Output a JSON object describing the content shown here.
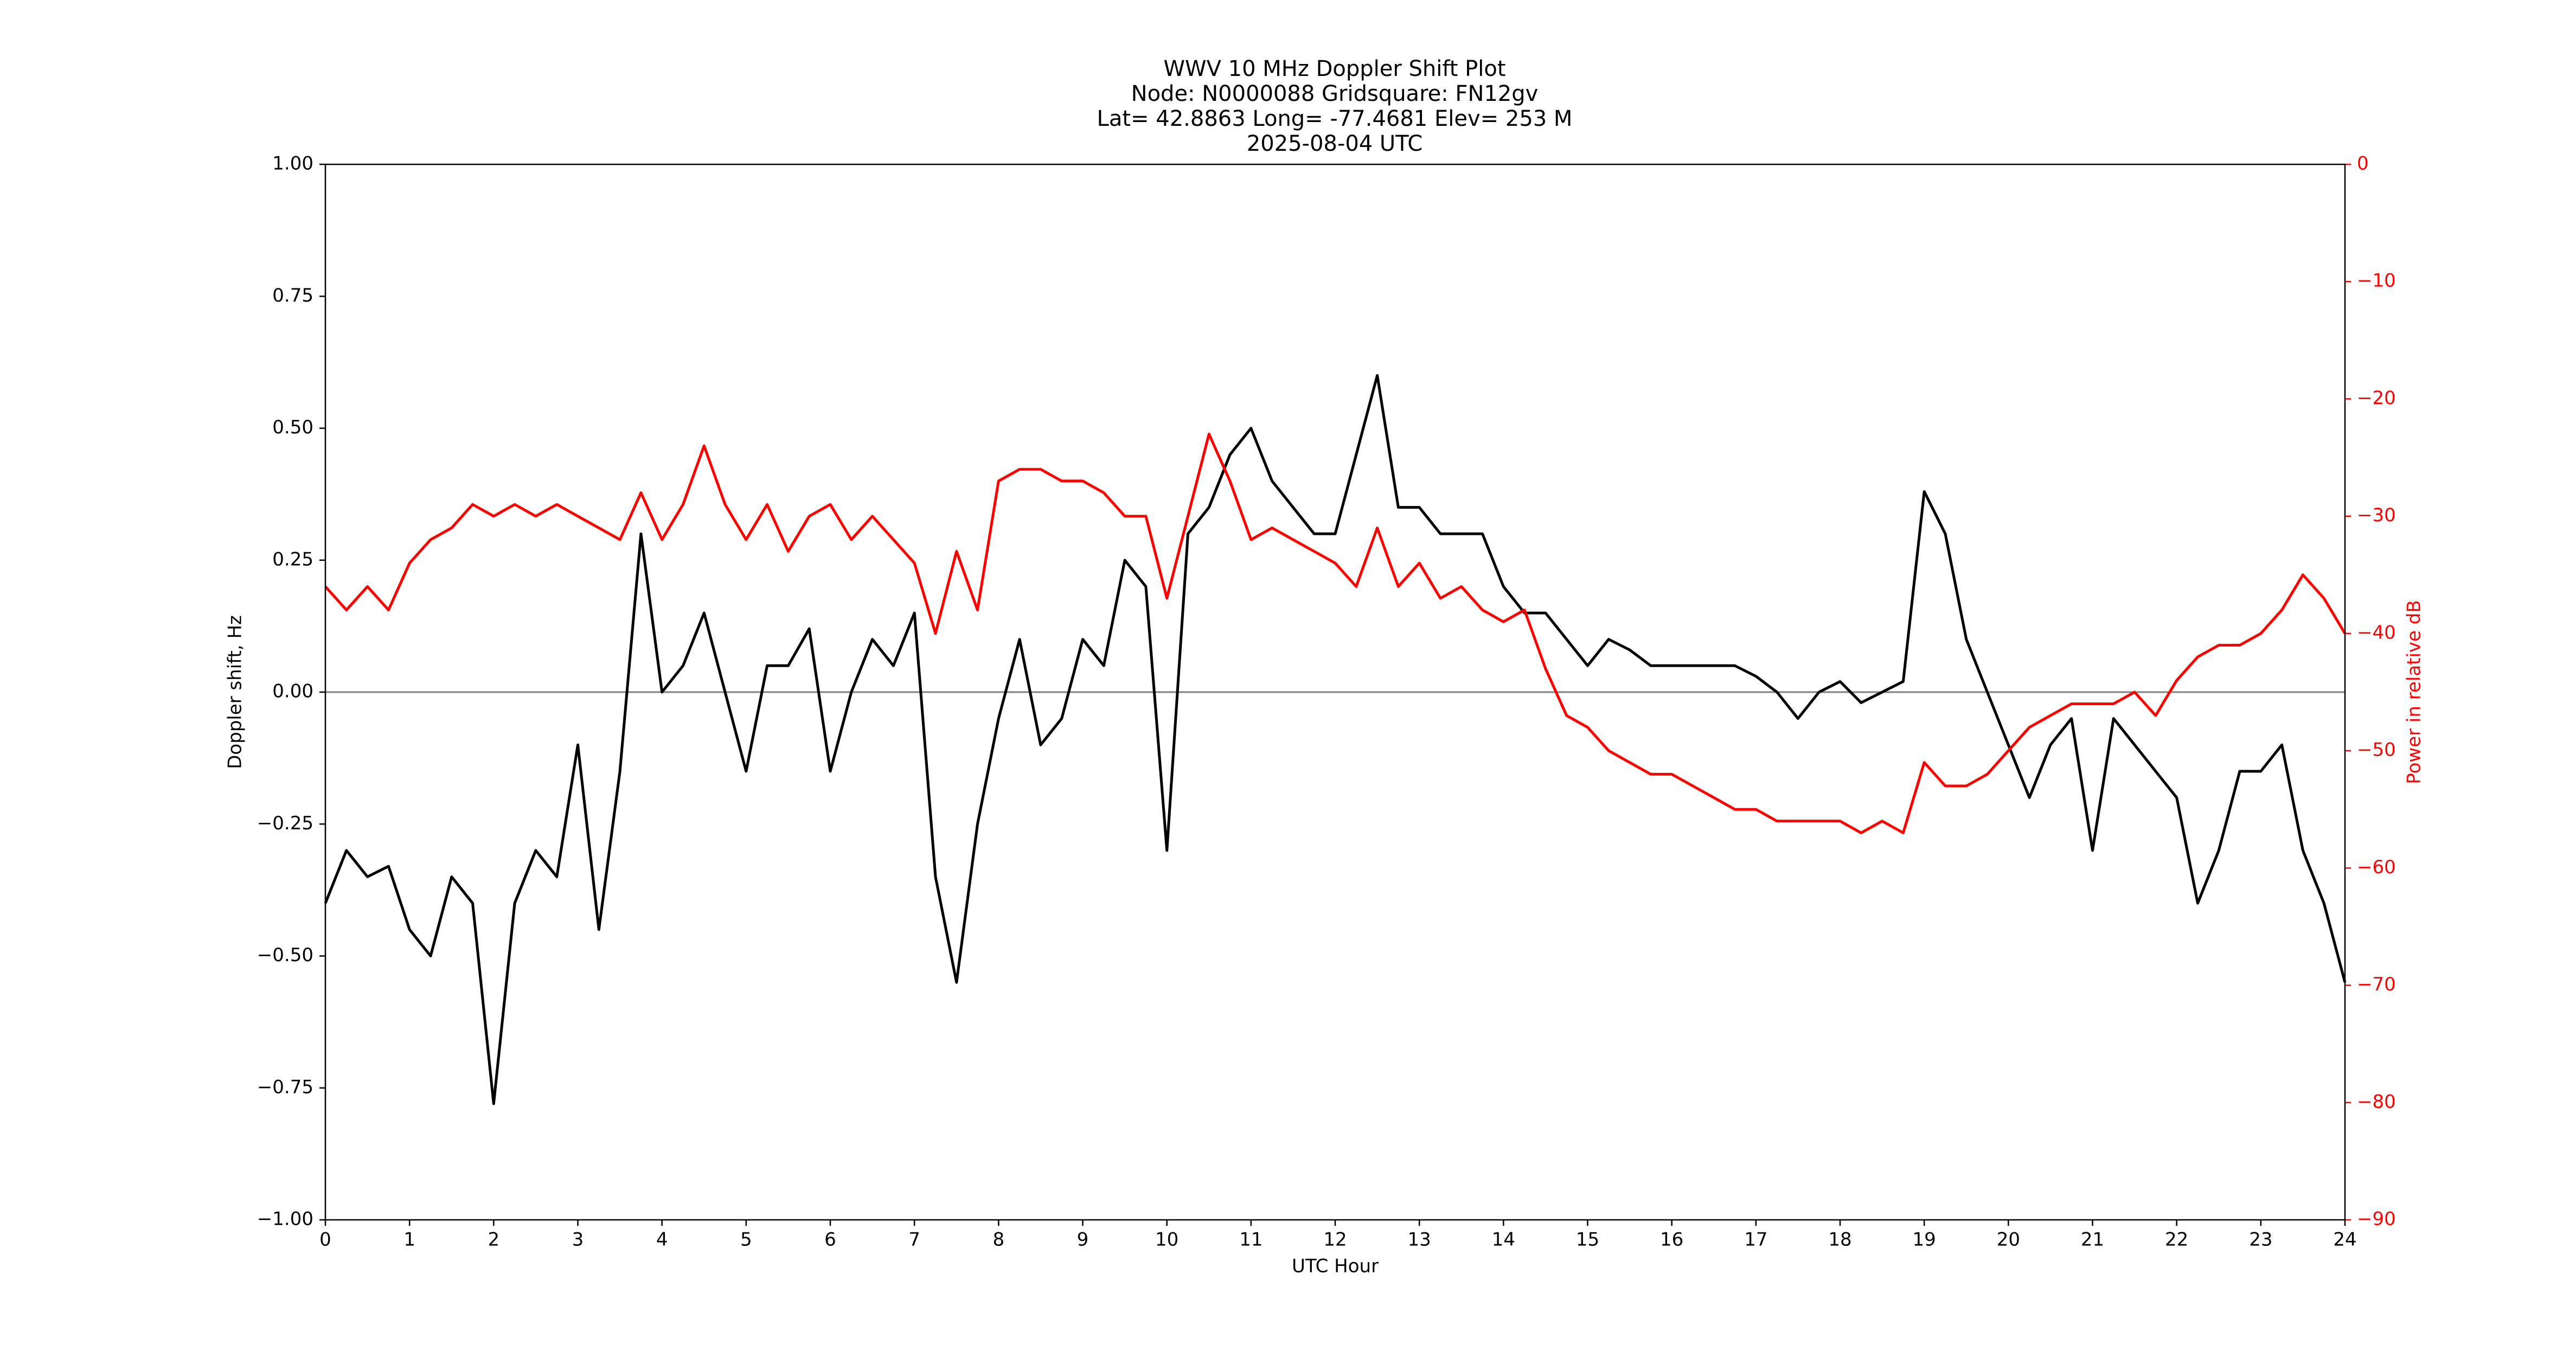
{
  "chart_data": {
    "type": "line",
    "title": [
      "WWV 10 MHz Doppler Shift Plot",
      "Node:  N0000088     Gridsquare:  FN12gv",
      "Lat= 42.8863    Long= -77.4681    Elev= 253 M",
      "2025-08-04  UTC"
    ],
    "x_label": "UTC Hour",
    "y_label": "Doppler shift, Hz",
    "y2_label": "Power in relative dB",
    "x": [
      0,
      0.25,
      0.5,
      0.75,
      1,
      1.25,
      1.5,
      1.75,
      2,
      2.25,
      2.5,
      2.75,
      3,
      3.25,
      3.5,
      3.75,
      4,
      4.25,
      4.5,
      4.75,
      5,
      5.25,
      5.5,
      5.75,
      6,
      6.25,
      6.5,
      6.75,
      7,
      7.25,
      7.5,
      7.75,
      8,
      8.25,
      8.5,
      8.75,
      9,
      9.25,
      9.5,
      9.75,
      10,
      10.25,
      10.5,
      10.75,
      11,
      11.25,
      11.5,
      11.75,
      12,
      12.25,
      12.5,
      12.75,
      13,
      13.25,
      13.5,
      13.75,
      14,
      14.25,
      14.5,
      14.75,
      15,
      15.25,
      15.5,
      15.75,
      16,
      16.25,
      16.5,
      16.75,
      17,
      17.25,
      17.5,
      17.75,
      18,
      18.25,
      18.5,
      18.75,
      19,
      19.25,
      19.5,
      19.75,
      20,
      20.25,
      20.5,
      20.75,
      21,
      21.25,
      21.5,
      21.75,
      22,
      22.25,
      22.5,
      22.75,
      23,
      23.25,
      23.5,
      23.75,
      24
    ],
    "series": [
      {
        "name": "Doppler shift",
        "color": "#000000",
        "axis": "y",
        "values": [
          -0.4,
          -0.3,
          -0.35,
          -0.33,
          -0.45,
          -0.5,
          -0.35,
          -0.4,
          -0.78,
          -0.4,
          -0.3,
          -0.35,
          -0.1,
          -0.45,
          -0.15,
          0.3,
          0.0,
          0.05,
          0.15,
          0.0,
          -0.15,
          0.05,
          0.05,
          0.12,
          -0.15,
          0.0,
          0.1,
          0.05,
          0.15,
          -0.35,
          -0.55,
          -0.25,
          -0.05,
          0.1,
          -0.1,
          -0.05,
          0.1,
          0.05,
          0.25,
          0.2,
          -0.3,
          0.3,
          0.35,
          0.45,
          0.5,
          0.4,
          0.35,
          0.3,
          0.3,
          0.45,
          0.6,
          0.35,
          0.35,
          0.3,
          0.3,
          0.3,
          0.2,
          0.15,
          0.15,
          0.1,
          0.05,
          0.1,
          0.08,
          0.05,
          0.05,
          0.05,
          0.05,
          0.05,
          0.03,
          0.0,
          -0.05,
          0.0,
          0.02,
          -0.02,
          0.0,
          0.02,
          0.38,
          0.3,
          0.1,
          0.0,
          -0.1,
          -0.2,
          -0.1,
          -0.05,
          -0.3,
          -0.05,
          -0.1,
          -0.15,
          -0.2,
          -0.4,
          -0.3,
          -0.15,
          -0.15,
          -0.1,
          -0.3,
          -0.4,
          -0.55
        ]
      },
      {
        "name": "Power",
        "color": "#ff0000",
        "axis": "y2",
        "values": [
          -36,
          -38,
          -36,
          -38,
          -34,
          -32,
          -31,
          -29,
          -30,
          -29,
          -30,
          -29,
          -30,
          -31,
          -32,
          -28,
          -32,
          -29,
          -24,
          -29,
          -32,
          -29,
          -33,
          -30,
          -29,
          -32,
          -30,
          -32,
          -34,
          -40,
          -33,
          -38,
          -27,
          -26,
          -26,
          -27,
          -27,
          -28,
          -30,
          -30,
          -37,
          -30,
          -23,
          -27,
          -32,
          -31,
          -32,
          -33,
          -34,
          -36,
          -31,
          -36,
          -34,
          -37,
          -36,
          -38,
          -39,
          -38,
          -43,
          -47,
          -48,
          -50,
          -51,
          -52,
          -52,
          -53,
          -54,
          -55,
          -55,
          -56,
          -56,
          -56,
          -56,
          -57,
          -56,
          -57,
          -51,
          -53,
          -53,
          -52,
          -50,
          -48,
          -47,
          -46,
          -46,
          -46,
          -45,
          -47,
          -44,
          -42,
          -41,
          -41,
          -40,
          -38,
          -35,
          -37,
          -40
        ]
      }
    ],
    "xlim": [
      0,
      24
    ],
    "xticks": [
      0,
      1,
      2,
      3,
      4,
      5,
      6,
      7,
      8,
      9,
      10,
      11,
      12,
      13,
      14,
      15,
      16,
      17,
      18,
      19,
      20,
      21,
      22,
      23,
      24
    ],
    "ylim": [
      -1,
      1
    ],
    "yticks": [
      {
        "value": -1,
        "label": "−1.00"
      },
      {
        "value": -0.75,
        "label": "−0.75"
      },
      {
        "value": -0.5,
        "label": "−0.50"
      },
      {
        "value": -0.25,
        "label": "−0.25"
      },
      {
        "value": 0,
        "label": "0.00"
      },
      {
        "value": 0.25,
        "label": "0.25"
      },
      {
        "value": 0.5,
        "label": "0.50"
      },
      {
        "value": 0.75,
        "label": "0.75"
      },
      {
        "value": 1,
        "label": "1.00"
      }
    ],
    "y2lim": [
      -90,
      0
    ],
    "y2ticks": [
      {
        "value": -90,
        "label": "−90"
      },
      {
        "value": -80,
        "label": "−80"
      },
      {
        "value": -70,
        "label": "−70"
      },
      {
        "value": -60,
        "label": "−60"
      },
      {
        "value": -50,
        "label": "−50"
      },
      {
        "value": -40,
        "label": "−40"
      },
      {
        "value": -30,
        "label": "−30"
      },
      {
        "value": -20,
        "label": "−20"
      },
      {
        "value": -10,
        "label": "−10"
      },
      0
    ],
    "y2_color": "#ff0000",
    "hlines": [
      0
    ],
    "hline_color": "#808080",
    "grid": false
  }
}
